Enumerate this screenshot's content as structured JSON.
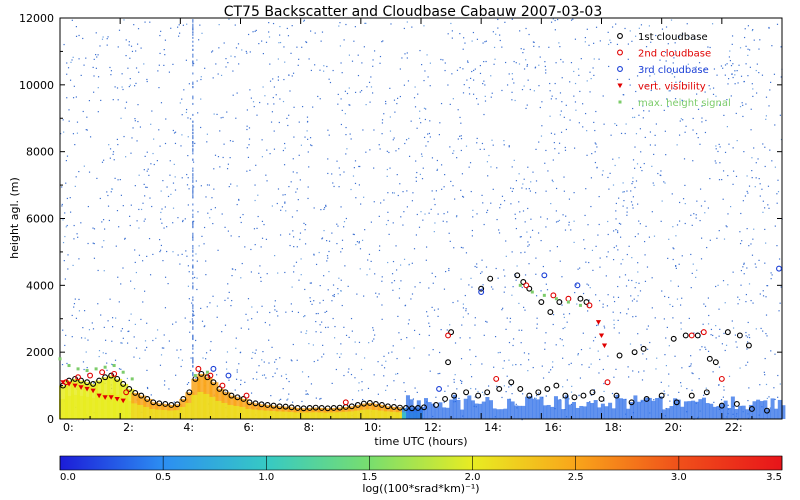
{
  "chart_data": {
    "type": "scatter",
    "title": "CT75 Backscatter and Cloudbase Cabauw 2007-03-03",
    "xlabel": "time UTC (hours)",
    "ylabel": "height agl. (m)",
    "xlim": [
      0,
      24
    ],
    "ylim": [
      0,
      12000
    ],
    "x_ticks": [
      "0:",
      "2:",
      "4:",
      "6:",
      "8:",
      "10:",
      "12:",
      "14:",
      "16:",
      "18:",
      "20:",
      "22:"
    ],
    "y_ticks": [
      "0",
      "2000",
      "4000",
      "6000",
      "8000",
      "10000",
      "12000"
    ],
    "colorbar": {
      "label": "log((100*srad*km)⁻¹)",
      "range": [
        0.0,
        3.5
      ],
      "ticks": [
        "0.0",
        "0.5",
        "1.0",
        "1.5",
        "2.0",
        "2.5",
        "3.0",
        "3.5"
      ],
      "colors": [
        "#1c1cd8",
        "#2c8ef2",
        "#36c9c4",
        "#78de6e",
        "#e8ec22",
        "#f9a51a",
        "#f0501a",
        "#e8141a"
      ]
    },
    "legend_position": "top-right",
    "series": [
      {
        "name": "1st cloudbase",
        "color": "#000000",
        "marker": "circle",
        "x": [
          0.1,
          0.3,
          0.5,
          0.7,
          0.9,
          1.1,
          1.3,
          1.5,
          1.7,
          1.9,
          2.1,
          2.3,
          2.5,
          2.7,
          2.9,
          3.1,
          3.3,
          3.5,
          3.7,
          3.9,
          4.1,
          4.3,
          4.5,
          4.7,
          4.9,
          5.1,
          5.3,
          5.5,
          5.7,
          5.9,
          6.1,
          6.3,
          6.5,
          6.7,
          6.9,
          7.1,
          7.3,
          7.5,
          7.7,
          7.9,
          8.1,
          8.3,
          8.5,
          8.7,
          8.9,
          9.1,
          9.3,
          9.5,
          9.7,
          9.9,
          10.1,
          10.3,
          10.5,
          10.7,
          10.9,
          11.1,
          11.3,
          11.5,
          11.7,
          11.9,
          12.1,
          12.5,
          12.8,
          13.1,
          13.5,
          13.9,
          14.2,
          14.6,
          15.0,
          15.3,
          15.6,
          15.9,
          16.2,
          16.5,
          16.8,
          17.1,
          17.4,
          17.7,
          18.0,
          18.5,
          19.0,
          19.5,
          20.0,
          20.5,
          21.0,
          21.5,
          22.0,
          22.5,
          23.0,
          23.5,
          12.9,
          13.0,
          14.0,
          14.3,
          15.2,
          15.4,
          15.6,
          16.0,
          16.3,
          16.6,
          17.3,
          17.5,
          18.6,
          19.1,
          19.4,
          20.4,
          20.8,
          21.2,
          21.6,
          21.8,
          22.2,
          22.6,
          22.9
        ],
        "y": [
          1000,
          1150,
          1200,
          1150,
          1100,
          1050,
          1150,
          1250,
          1300,
          1200,
          1050,
          900,
          780,
          700,
          600,
          500,
          470,
          450,
          420,
          440,
          600,
          800,
          1200,
          1350,
          1250,
          1100,
          900,
          800,
          700,
          650,
          600,
          500,
          470,
          440,
          420,
          400,
          380,
          370,
          350,
          330,
          320,
          330,
          340,
          330,
          320,
          330,
          340,
          360,
          380,
          420,
          460,
          480,
          450,
          420,
          380,
          360,
          340,
          330,
          320,
          330,
          350,
          420,
          600,
          700,
          800,
          700,
          800,
          900,
          1100,
          900,
          700,
          800,
          900,
          1000,
          700,
          650,
          700,
          800,
          600,
          700,
          500,
          600,
          700,
          500,
          700,
          800,
          400,
          450,
          300,
          250,
          1700,
          2600,
          3900,
          4200,
          4300,
          4100,
          3900,
          3500,
          3200,
          3500,
          3600,
          3500,
          1900,
          2000,
          2100,
          2400,
          2500,
          2500,
          1800,
          1700,
          2600,
          2500,
          2200
        ]
      },
      {
        "name": "2nd cloudbase",
        "color": "#e00000",
        "marker": "circle",
        "x": [
          0.2,
          0.6,
          1.0,
          1.4,
          1.8,
          2.2,
          4.6,
          5.0,
          5.4,
          6.2,
          9.5,
          12.9,
          14.5,
          15.5,
          16.4,
          16.9,
          17.6,
          18.2,
          21.0,
          21.4,
          22.0
        ],
        "y": [
          1100,
          1250,
          1300,
          1400,
          1350,
          800,
          1500,
          1300,
          1000,
          700,
          500,
          2500,
          1200,
          4000,
          3700,
          3600,
          3400,
          1100,
          2500,
          2600,
          1200
        ]
      },
      {
        "name": "3rd cloudbase",
        "color": "#1a3fd6",
        "marker": "circle",
        "x": [
          5.1,
          5.6,
          12.6,
          14.0,
          16.1,
          17.2,
          23.9
        ],
        "y": [
          1500,
          1300,
          900,
          3800,
          4300,
          4000,
          4500
        ]
      },
      {
        "name": "vert. visibility",
        "color": "#e00000",
        "marker": "triangle",
        "x": [
          0.1,
          0.3,
          0.5,
          0.7,
          0.9,
          1.1,
          1.3,
          1.5,
          1.7,
          1.9,
          2.1,
          17.9,
          18.0,
          18.1
        ],
        "y": [
          1100,
          1050,
          1000,
          950,
          900,
          850,
          700,
          650,
          650,
          600,
          550,
          2900,
          2500,
          2200
        ]
      },
      {
        "name": "max. height signal",
        "color": "#7ccc6a",
        "marker": "dot",
        "x": [
          0.0,
          0.3,
          0.6,
          0.9,
          1.2,
          1.5,
          1.8,
          2.1,
          2.4,
          4.5,
          4.9,
          15.3,
          15.7,
          16.1,
          16.5,
          16.9,
          17.3
        ],
        "y": [
          1800,
          1600,
          1500,
          1450,
          1500,
          1550,
          1600,
          1400,
          1200,
          1300,
          1400,
          4000,
          3800,
          3700,
          3600,
          3500,
          3400
        ]
      }
    ]
  }
}
